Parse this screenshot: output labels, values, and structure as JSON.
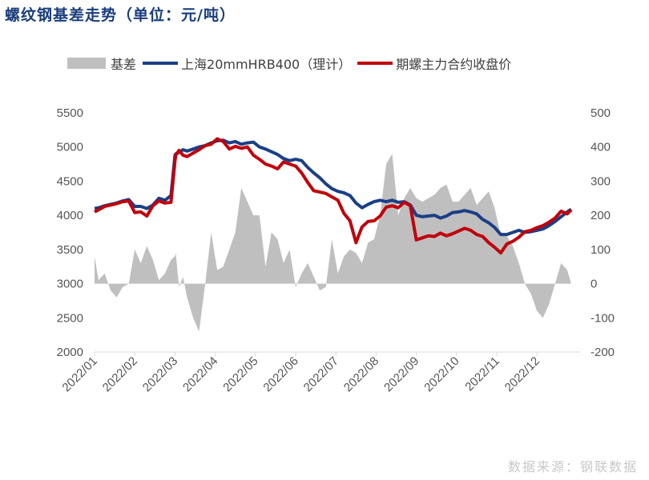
{
  "title": "螺纹钢基差走势（单位：元/吨）",
  "source": "数据来源：钢联数据",
  "colors": {
    "basis": "#bfbfbf",
    "spot": "#1b3f86",
    "futures": "#c0000b",
    "title": "#1a3d7c"
  },
  "legend": [
    {
      "label": "基差",
      "type": "area",
      "color": "#bfbfbf"
    },
    {
      "label": "上海20mmHRB400（理计）",
      "type": "line",
      "color": "#1b3f86"
    },
    {
      "label": "期螺主力合约收盘价",
      "type": "line",
      "color": "#c0000b"
    }
  ],
  "chart_data": {
    "type": "line",
    "title": "螺纹钢基差走势（单位：元/吨）",
    "xlabel": "",
    "ylabel": "元/吨",
    "categories": [
      "2022/01",
      "2022/02",
      "2022/03",
      "2022/04",
      "2022/05",
      "2022/06",
      "2022/07",
      "2022/08",
      "2022/09",
      "2022/10",
      "2022/11",
      "2022/12"
    ],
    "left_axis": {
      "ticks": [
        2000,
        2500,
        3000,
        3500,
        4000,
        4500,
        5000,
        5500
      ],
      "ylim": [
        2000,
        5500
      ]
    },
    "right_axis": {
      "ticks": [
        -200,
        -100,
        0,
        100,
        200,
        300,
        400,
        500
      ],
      "ylim": [
        -200,
        500
      ]
    },
    "x": [
      0,
      0.1,
      0.25,
      0.4,
      0.55,
      0.7,
      0.85,
      1.0,
      1.15,
      1.3,
      1.45,
      1.6,
      1.75,
      1.9,
      2.0,
      2.02,
      2.1,
      2.2,
      2.3,
      2.45,
      2.6,
      2.75,
      2.9,
      3.05,
      3.2,
      3.35,
      3.5,
      3.65,
      3.8,
      3.95,
      4.1,
      4.25,
      4.4,
      4.55,
      4.7,
      4.85,
      5.0,
      5.15,
      5.3,
      5.45,
      5.6,
      5.75,
      5.9,
      6.05,
      6.2,
      6.35,
      6.5,
      6.65,
      6.8,
      6.95,
      7.1,
      7.25,
      7.4,
      7.55,
      7.7,
      7.85,
      8.0,
      8.15,
      8.3,
      8.45,
      8.6,
      8.75,
      8.9,
      9.05,
      9.2,
      9.35,
      9.5,
      9.65,
      9.8,
      9.95,
      10.1,
      10.25,
      10.4,
      10.55,
      10.7,
      10.85,
      11.0,
      11.15,
      11.3,
      11.45,
      11.6,
      11.75,
      11.85
    ],
    "series": [
      {
        "name": "上海20mmHRB400（理计）",
        "axis": "left",
        "values": [
          4100,
          4110,
          4140,
          4160,
          4180,
          4210,
          4230,
          4130,
          4130,
          4100,
          4150,
          4250,
          4220,
          4290,
          4880,
          4900,
          4920,
          4960,
          4940,
          4970,
          5000,
          5020,
          5060,
          5090,
          5100,
          5060,
          5080,
          5040,
          5060,
          5070,
          5000,
          4970,
          4930,
          4890,
          4830,
          4800,
          4820,
          4800,
          4700,
          4620,
          4550,
          4460,
          4390,
          4350,
          4330,
          4290,
          4180,
          4110,
          4160,
          4200,
          4220,
          4200,
          4220,
          4190,
          4200,
          4150,
          4000,
          3980,
          3990,
          4000,
          3960,
          3990,
          4040,
          4050,
          4070,
          4050,
          4020,
          3940,
          3890,
          3820,
          3720,
          3720,
          3750,
          3780,
          3750,
          3760,
          3780,
          3800,
          3850,
          3910,
          3980,
          4050,
          4090
        ]
      },
      {
        "name": "期螺主力合约收盘价",
        "axis": "left",
        "values": [
          4050,
          4080,
          4130,
          4150,
          4170,
          4200,
          4210,
          4040,
          4050,
          3990,
          4140,
          4210,
          4180,
          4190,
          4800,
          4880,
          4950,
          4880,
          4860,
          4910,
          4960,
          5020,
          5040,
          5120,
          5080,
          4970,
          5010,
          4980,
          5000,
          4880,
          4820,
          4750,
          4720,
          4680,
          4780,
          4750,
          4720,
          4620,
          4480,
          4360,
          4340,
          4320,
          4270,
          4220,
          4030,
          3920,
          3600,
          3830,
          3910,
          3920,
          3990,
          4120,
          4140,
          4110,
          4190,
          4140,
          3640,
          3670,
          3700,
          3690,
          3740,
          3700,
          3730,
          3770,
          3810,
          3780,
          3720,
          3690,
          3600,
          3530,
          3450,
          3580,
          3620,
          3680,
          3760,
          3780,
          3820,
          3850,
          3900,
          3960,
          4060,
          4020,
          4080
        ]
      },
      {
        "name": "基差",
        "axis": "right",
        "values": [
          80,
          10,
          30,
          -20,
          -40,
          -10,
          0,
          100,
          60,
          110,
          70,
          10,
          30,
          70,
          80,
          90,
          -10,
          20,
          -40,
          -100,
          -140,
          0,
          150,
          40,
          50,
          100,
          150,
          280,
          240,
          200,
          200,
          50,
          150,
          130,
          60,
          100,
          -10,
          30,
          60,
          20,
          -20,
          -10,
          130,
          30,
          80,
          100,
          90,
          60,
          120,
          130,
          200,
          350,
          380,
          200,
          250,
          280,
          250,
          240,
          250,
          260,
          280,
          290,
          240,
          240,
          260,
          280,
          230,
          250,
          270,
          220,
          140,
          140,
          110,
          60,
          0,
          -30,
          -80,
          -100,
          -60,
          0,
          60,
          40,
          0
        ]
      }
    ]
  }
}
